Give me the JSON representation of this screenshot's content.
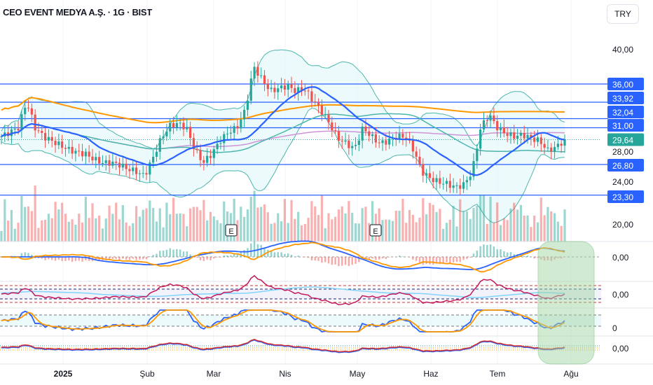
{
  "header": {
    "title": "CEO EVENT MEDYA A.Ş. · 1G · BIST",
    "currency": "TRY"
  },
  "chart_data": {
    "type": "candlestick",
    "price_axis": {
      "ticks": [
        "40,00",
        "28,00",
        "24,00",
        "20,00"
      ],
      "tick_values": [
        40,
        28,
        24,
        20
      ],
      "range": [
        17.3,
        44.5
      ]
    },
    "horizontal_levels": [
      {
        "value": 36.0,
        "label": "36,00"
      },
      {
        "value": 33.92,
        "label": "33,92"
      },
      {
        "value": 32.04,
        "label": "32,04"
      },
      {
        "value": 31.0,
        "label": "31,00"
      },
      {
        "value": 26.8,
        "label": "26,80"
      },
      {
        "value": 23.3,
        "label": "23,30"
      }
    ],
    "last_price": {
      "value": 29.64,
      "label": "29,64"
    },
    "months": [
      "2025",
      "Şub",
      "Mar",
      "Nis",
      "May",
      "Haz",
      "Tem",
      "Ağu"
    ],
    "closes_approx": [
      30,
      30.5,
      31,
      34,
      31,
      30,
      29.5,
      29,
      28.5,
      28.2,
      28,
      27.4,
      27,
      27,
      26.8,
      26.3,
      26,
      25.5,
      27.5,
      29.8,
      31.2,
      31.5,
      31,
      28.5,
      27,
      28,
      29.5,
      30.5,
      31,
      33,
      38,
      36.5,
      35.2,
      35.5,
      35.8,
      35.2,
      35.5,
      34.2,
      33,
      31.5,
      29.8,
      29.2,
      28.6,
      31,
      30,
      29.2,
      29.5,
      30,
      30,
      28.5,
      26,
      25.2,
      24.8,
      24.6,
      24.2,
      24.5,
      26,
      31,
      32.5,
      31,
      30.3,
      30,
      30.2,
      29.8,
      29.5,
      28.4,
      28.8,
      29.64
    ],
    "earnings_markers": [
      "E",
      "E"
    ],
    "indicator_panels": [
      {
        "zero_label": "0,00"
      },
      {
        "zero_label": "0,00"
      },
      {
        "zero_label": "0"
      },
      {
        "zero_label": "0,00"
      }
    ],
    "colors": {
      "up": "#26a69a",
      "down": "#ef5350",
      "level": "#2962ff",
      "ma_fast": "#2962ff",
      "ma_slow": "#ff9800",
      "ma_mid": "#ce93d8",
      "ma_green": "#4db6ac",
      "highlight": "#a5d6a7"
    }
  }
}
